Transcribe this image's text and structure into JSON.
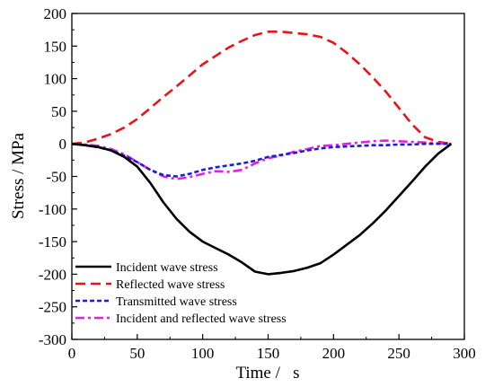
{
  "chart_data": {
    "type": "line",
    "xlabel": "Time /   s",
    "ylabel": "Stress / MPa",
    "xlim": [
      0,
      300
    ],
    "ylim": [
      -300,
      200
    ],
    "xticks": [
      0,
      50,
      100,
      150,
      200,
      250,
      300
    ],
    "yticks": [
      -300,
      -250,
      -200,
      -150,
      -100,
      -50,
      0,
      50,
      100,
      150,
      200
    ],
    "legend_position": "bottom-left",
    "series": [
      {
        "name": "Incident wave stress",
        "color": "#000000",
        "dash": "solid",
        "x": [
          0,
          10,
          20,
          30,
          40,
          50,
          60,
          70,
          80,
          90,
          100,
          110,
          120,
          130,
          140,
          150,
          160,
          170,
          180,
          190,
          200,
          210,
          220,
          230,
          240,
          250,
          260,
          270,
          280,
          290
        ],
        "y": [
          0,
          -2,
          -5,
          -10,
          -20,
          -35,
          -60,
          -90,
          -115,
          -135,
          -150,
          -160,
          -170,
          -182,
          -196,
          -200,
          -198,
          -195,
          -190,
          -183,
          -170,
          -155,
          -140,
          -122,
          -102,
          -80,
          -58,
          -35,
          -15,
          0
        ]
      },
      {
        "name": "Reflected wave stress",
        "color": "#e8141b",
        "dash": "dash",
        "x": [
          0,
          10,
          20,
          30,
          40,
          50,
          60,
          70,
          80,
          90,
          100,
          110,
          120,
          130,
          140,
          150,
          160,
          170,
          180,
          190,
          200,
          210,
          220,
          230,
          240,
          250,
          260,
          270,
          280,
          290
        ],
        "y": [
          0,
          2,
          8,
          15,
          25,
          38,
          55,
          72,
          88,
          105,
          122,
          135,
          148,
          158,
          167,
          172,
          172,
          170,
          168,
          164,
          155,
          140,
          122,
          102,
          80,
          55,
          30,
          10,
          3,
          0
        ]
      },
      {
        "name": "Transmitted wave stress",
        "color": "#1c1cd8",
        "dash": "dot",
        "x": [
          0,
          10,
          20,
          30,
          40,
          50,
          60,
          70,
          80,
          90,
          100,
          110,
          120,
          130,
          140,
          150,
          160,
          170,
          180,
          190,
          200,
          210,
          220,
          230,
          240,
          250,
          260,
          270,
          280,
          290
        ],
        "y": [
          0,
          -2,
          -5,
          -10,
          -18,
          -28,
          -40,
          -48,
          -50,
          -46,
          -40,
          -36,
          -33,
          -30,
          -26,
          -20,
          -17,
          -14,
          -10,
          -7,
          -5,
          -4,
          -3,
          -2,
          -2,
          -1,
          -1,
          0,
          0,
          0
        ]
      },
      {
        "name": "Incident and reflected wave stress",
        "color": "#e61ee6",
        "dash": "dashdot",
        "x": [
          0,
          10,
          20,
          30,
          40,
          50,
          60,
          70,
          80,
          90,
          100,
          110,
          120,
          130,
          140,
          150,
          160,
          170,
          180,
          190,
          200,
          210,
          220,
          230,
          240,
          250,
          260,
          270,
          280,
          290
        ],
        "y": [
          0,
          -1,
          -3,
          -8,
          -16,
          -28,
          -40,
          -50,
          -54,
          -51,
          -46,
          -42,
          -43,
          -40,
          -30,
          -22,
          -18,
          -12,
          -8,
          -3,
          -2,
          0,
          2,
          4,
          5,
          4,
          3,
          2,
          1,
          0
        ]
      }
    ]
  }
}
